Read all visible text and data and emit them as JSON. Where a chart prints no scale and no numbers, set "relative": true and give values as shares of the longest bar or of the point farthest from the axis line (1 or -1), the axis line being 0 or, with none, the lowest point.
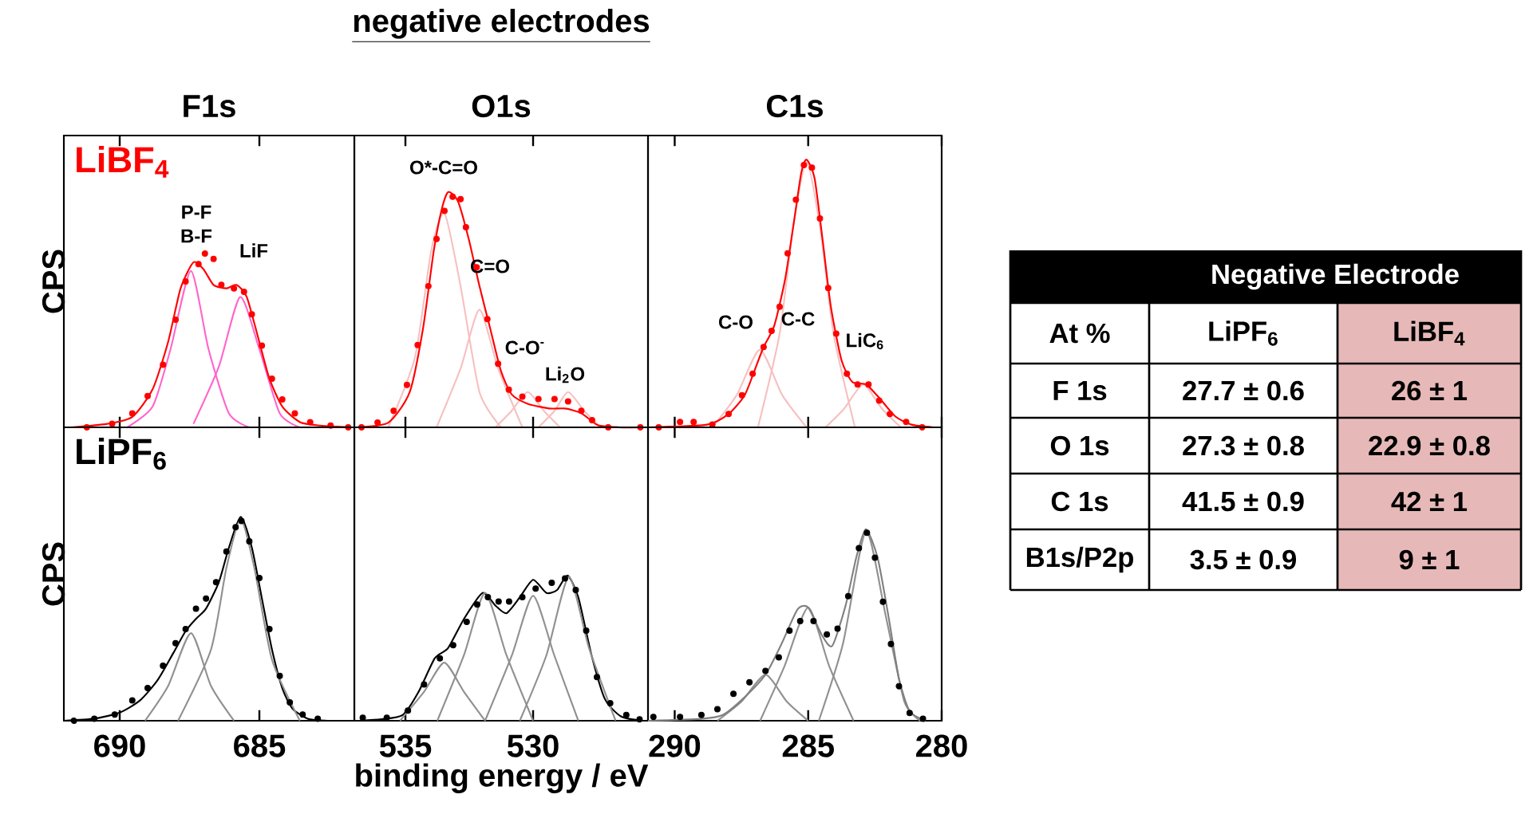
{
  "chart_data": [
    {
      "type": "line",
      "title": "F1s",
      "ylabel": "CPS",
      "relative": true,
      "xlim": [
        692,
        681.6
      ],
      "xticks": [
        690,
        685
      ],
      "tick_labels": false,
      "annotations": [
        "LiBF$_{4}$",
        "P-F",
        "B-F",
        "LiF"
      ],
      "series": [
        {
          "type": "line",
          "color": "#ff66cc",
          "x": [
            689.73,
            688.82,
            688.18,
            687.45,
            686.82,
            686.09,
            685.36
          ],
          "values": [
            0,
            0.12,
            0.45,
            0.9,
            0.45,
            0.08,
            0
          ]
        },
        {
          "type": "line",
          "color": "#ff66cc",
          "x": [
            687.36,
            686.45,
            685.69,
            685.0,
            684.27,
            683.55
          ],
          "values": [
            0.02,
            0.35,
            0.75,
            0.45,
            0.08,
            0
          ]
        },
        {
          "type": "line",
          "color": "#ff0000",
          "x": [
            691.73,
            690.45,
            689.55,
            688.82,
            688.27,
            687.82,
            687.36,
            687.0,
            686.64,
            686.18,
            685.82,
            685.45,
            685.0,
            684.64,
            684.18,
            683.55,
            682.82,
            681.7
          ],
          "values": [
            0,
            0.02,
            0.06,
            0.22,
            0.49,
            0.8,
            0.95,
            0.91,
            0.82,
            0.8,
            0.82,
            0.75,
            0.49,
            0.28,
            0.12,
            0.03,
            0.01,
            0
          ]
        },
        {
          "type": "scatter",
          "marker": "circle",
          "color": "#ff0000",
          "x": [
            691.18,
            690.27,
            689.55,
            689.0,
            688.45,
            688.0,
            687.64,
            687.18,
            686.95,
            686.64,
            686.36,
            685.91,
            685.55,
            685.27,
            684.91,
            684.55,
            684.18,
            683.73,
            683.18,
            682.45,
            681.82
          ],
          "values": [
            0,
            0.02,
            0.08,
            0.18,
            0.36,
            0.62,
            0.84,
            0.94,
            1.0,
            0.97,
            0.82,
            0.8,
            0.78,
            0.65,
            0.47,
            0.28,
            0.16,
            0.08,
            0.03,
            0.01,
            0
          ]
        }
      ]
    },
    {
      "type": "line",
      "title": "negative electrodes",
      "subtitle": "O1s",
      "relative": true,
      "xlim": [
        537,
        525.5
      ],
      "xticks": [
        535,
        530
      ],
      "tick_labels": false,
      "annotations": [
        "O*-C=O",
        "C=O",
        "C-O$^{-}$",
        "Li$_{2}$O"
      ],
      "series": [
        {
          "type": "line",
          "color": "#f7c0c0",
          "x": [
            535.67,
            534.62,
            533.99,
            533.47,
            532.84,
            532.1,
            531.26
          ],
          "values": [
            0,
            0.3,
            0.75,
            0.91,
            0.6,
            0.15,
            0
          ]
        },
        {
          "type": "line",
          "color": "#f7c0c0",
          "x": [
            533.78,
            532.84,
            532.1,
            531.37,
            530.42
          ],
          "values": [
            0,
            0.25,
            0.5,
            0.25,
            0
          ]
        },
        {
          "type": "line",
          "color": "#f7c0c0",
          "x": [
            531.47,
            530.84,
            530.21,
            529.58,
            528.95
          ],
          "values": [
            0,
            0.07,
            0.15,
            0.07,
            0
          ]
        },
        {
          "type": "line",
          "color": "#f7c0c0",
          "x": [
            529.79,
            529.16,
            528.63,
            528.0,
            527.37
          ],
          "values": [
            0,
            0.07,
            0.15,
            0.07,
            0
          ]
        },
        {
          "type": "line",
          "color": "#ff0000",
          "x": [
            536.93,
            535.67,
            534.83,
            534.31,
            533.89,
            533.57,
            533.32,
            532.94,
            532.52,
            532.1,
            531.68,
            531.26,
            530.84,
            530.21,
            529.37,
            528.74,
            528.11,
            527.48,
            526.64,
            525.59
          ],
          "values": [
            0,
            0.02,
            0.15,
            0.42,
            0.75,
            0.93,
            1.0,
            0.96,
            0.8,
            0.6,
            0.42,
            0.24,
            0.14,
            0.1,
            0.08,
            0.08,
            0.06,
            0.01,
            0,
            0
          ]
        },
        {
          "type": "scatter",
          "marker": "circle",
          "color": "#ff0000",
          "x": [
            536.72,
            536.09,
            535.46,
            534.94,
            534.52,
            534.1,
            533.78,
            533.47,
            533.15,
            532.84,
            532.63,
            532.21,
            531.79,
            531.37,
            530.95,
            530.42,
            529.79,
            529.16,
            528.63,
            528.11,
            527.69,
            527.06,
            525.8
          ],
          "values": [
            0,
            0.02,
            0.07,
            0.18,
            0.35,
            0.6,
            0.8,
            0.92,
            0.98,
            0.97,
            0.85,
            0.68,
            0.46,
            0.27,
            0.16,
            0.13,
            0.12,
            0.12,
            0.11,
            0.07,
            0.03,
            0,
            0
          ]
        }
      ]
    },
    {
      "type": "line",
      "title": "C1s",
      "relative": true,
      "xlim": [
        291,
        280
      ],
      "xticks": [
        290,
        285,
        280
      ],
      "tick_labels": false,
      "annotations": [
        "C-O",
        "C-C",
        "LiC$_{6}$"
      ],
      "series": [
        {
          "type": "line",
          "color": "#f7c0c0",
          "x": [
            288.59,
            287.68,
            286.81,
            285.97,
            285.06
          ],
          "values": [
            0,
            0.12,
            0.29,
            0.12,
            0
          ]
        },
        {
          "type": "line",
          "color": "#f7c0c0",
          "x": [
            286.88,
            286.07,
            285.56,
            285.06,
            284.56,
            284.05,
            283.25
          ],
          "values": [
            0,
            0.35,
            0.75,
            0.99,
            0.75,
            0.35,
            0
          ]
        },
        {
          "type": "line",
          "color": "#f7c0c0",
          "x": [
            284.35,
            283.65,
            282.94,
            282.24,
            281.53
          ],
          "values": [
            0,
            0.07,
            0.16,
            0.07,
            0
          ]
        },
        {
          "type": "line",
          "color": "#ff0000",
          "x": [
            291.0,
            288.79,
            287.98,
            287.38,
            286.98,
            286.67,
            286.27,
            285.87,
            285.56,
            285.26,
            285.06,
            284.76,
            284.46,
            284.15,
            283.75,
            283.35,
            282.83,
            282.34,
            281.73,
            281.13,
            280.32
          ],
          "values": [
            0,
            0.01,
            0.05,
            0.12,
            0.22,
            0.3,
            0.38,
            0.55,
            0.75,
            0.95,
            1.0,
            0.93,
            0.7,
            0.45,
            0.25,
            0.17,
            0.16,
            0.11,
            0.04,
            0.01,
            0
          ]
        },
        {
          "type": "scatter",
          "marker": "circle",
          "color": "#ff0000",
          "x": [
            290.6,
            289.8,
            289.29,
            288.59,
            287.98,
            287.48,
            287.08,
            286.67,
            286.37,
            286.07,
            285.77,
            285.46,
            285.16,
            284.86,
            284.56,
            284.25,
            283.95,
            283.55,
            283.15,
            282.74,
            282.34,
            281.94,
            281.33,
            280.73
          ],
          "values": [
            0,
            0.02,
            0.02,
            0.01,
            0.05,
            0.12,
            0.2,
            0.3,
            0.36,
            0.45,
            0.65,
            0.85,
            0.98,
            0.97,
            0.78,
            0.52,
            0.35,
            0.2,
            0.16,
            0.16,
            0.1,
            0.05,
            0.02,
            0
          ]
        }
      ]
    },
    {
      "type": "line",
      "ylabel": "CPS",
      "relative": true,
      "xlim": [
        692,
        681.6
      ],
      "xticks": [
        690,
        685
      ],
      "tick_labels": "x",
      "annotations": [
        "LiPF$_{6}$"
      ],
      "series": [
        {
          "type": "line",
          "color": "#000000",
          "x": [
            692.0,
            690.91,
            690.0,
            689.27,
            688.64,
            688.09,
            687.64,
            687.27,
            686.91,
            686.45,
            686.09,
            685.67,
            685.27,
            684.91,
            684.55,
            684.18,
            683.82,
            683.27,
            682.55
          ],
          "values": [
            0,
            0.01,
            0.04,
            0.1,
            0.2,
            0.33,
            0.44,
            0.5,
            0.55,
            0.68,
            0.85,
            1.0,
            0.85,
            0.6,
            0.35,
            0.16,
            0.06,
            0.01,
            0
          ]
        },
        {
          "type": "line",
          "color": "#909090",
          "x": [
            689.09,
            688.27,
            687.45,
            686.73,
            685.91
          ],
          "values": [
            0,
            0.17,
            0.43,
            0.17,
            0
          ]
        },
        {
          "type": "line",
          "color": "#909090",
          "x": [
            687.91,
            686.73,
            686.18,
            685.67,
            685.18,
            684.55,
            683.55
          ],
          "values": [
            0,
            0.35,
            0.75,
            0.99,
            0.75,
            0.3,
            0
          ]
        },
        {
          "type": "scatter",
          "marker": "circle",
          "color": "#000000",
          "x": [
            691.64,
            690.91,
            690.18,
            689.55,
            689.0,
            688.45,
            688.0,
            687.64,
            687.27,
            686.91,
            686.55,
            686.18,
            685.85,
            685.64,
            685.36,
            685.0,
            684.64,
            684.27,
            683.91,
            683.45,
            682.91
          ],
          "values": [
            0,
            0.01,
            0.03,
            0.1,
            0.16,
            0.27,
            0.38,
            0.45,
            0.55,
            0.6,
            0.68,
            0.83,
            0.95,
            0.98,
            0.88,
            0.7,
            0.45,
            0.22,
            0.09,
            0.03,
            0.01
          ]
        }
      ]
    },
    {
      "type": "line",
      "xlabel": "binding energy / eV",
      "relative": true,
      "xlim": [
        537,
        525.5
      ],
      "xticks": [
        535,
        530
      ],
      "tick_labels": "x",
      "series": [
        {
          "type": "line",
          "color": "#000000",
          "x": [
            536.77,
            535.94,
            535.1,
            534.48,
            533.85,
            533.33,
            532.71,
            531.98,
            531.46,
            531.04,
            530.52,
            530.0,
            529.48,
            529.06,
            528.65,
            528.23,
            527.71,
            527.19,
            526.56,
            525.73
          ],
          "values": [
            0,
            0.01,
            0.04,
            0.2,
            0.43,
            0.5,
            0.7,
            0.88,
            0.79,
            0.74,
            0.85,
            0.97,
            0.88,
            0.9,
            1.0,
            0.85,
            0.45,
            0.15,
            0.03,
            0
          ]
        },
        {
          "type": "line",
          "color": "#909090",
          "x": [
            535.21,
            534.27,
            533.48,
            532.71,
            531.88
          ],
          "values": [
            0,
            0.2,
            0.4,
            0.2,
            0
          ]
        },
        {
          "type": "line",
          "color": "#909090",
          "x": [
            533.75,
            532.71,
            531.88,
            531.04,
            530.0
          ],
          "values": [
            0,
            0.45,
            0.88,
            0.45,
            0
          ]
        },
        {
          "type": "line",
          "color": "#909090",
          "x": [
            531.88,
            530.83,
            530.0,
            529.17,
            528.23
          ],
          "values": [
            0,
            0.45,
            0.86,
            0.45,
            0
          ]
        },
        {
          "type": "line",
          "color": "#909090",
          "x": [
            530.52,
            529.48,
            528.6,
            527.81,
            526.77
          ],
          "values": [
            0,
            0.45,
            0.99,
            0.5,
            0
          ]
        },
        {
          "type": "scatter",
          "marker": "circle",
          "color": "#000000",
          "x": [
            536.67,
            535.73,
            534.9,
            534.27,
            533.65,
            533.13,
            532.6,
            532.19,
            531.77,
            531.35,
            530.94,
            530.42,
            529.9,
            529.27,
            528.75,
            528.33,
            527.92,
            527.5,
            526.98,
            526.35,
            525.83
          ],
          "values": [
            0.02,
            0.02,
            0.07,
            0.25,
            0.43,
            0.52,
            0.68,
            0.8,
            0.85,
            0.82,
            0.82,
            0.85,
            0.91,
            0.95,
            0.98,
            0.9,
            0.62,
            0.3,
            0.12,
            0.04,
            0.01
          ]
        }
      ]
    },
    {
      "type": "line",
      "relative": true,
      "xlim": [
        291,
        280
      ],
      "xticks": [
        290,
        285,
        280
      ],
      "tick_labels": "x",
      "series": [
        {
          "type": "line",
          "color": "#909090",
          "x": [
            288.4,
            287.5,
            286.6,
            285.8,
            285.0
          ],
          "values": [
            0,
            0.1,
            0.24,
            0.1,
            0
          ]
        },
        {
          "type": "line",
          "color": "#909090",
          "x": [
            286.8,
            285.9,
            285.0,
            284.2,
            283.3
          ],
          "values": [
            0,
            0.28,
            0.59,
            0.28,
            0
          ]
        },
        {
          "type": "line",
          "color": "#909090",
          "x": [
            284.6,
            283.7,
            282.84,
            282.1,
            281.4,
            280.8
          ],
          "values": [
            0,
            0.4,
            0.99,
            0.55,
            0.1,
            0
          ]
        },
        {
          "type": "line",
          "color": "#808080",
          "x": [
            291.0,
            289.0,
            288.2,
            287.4,
            286.6,
            286.0,
            285.4,
            285.0,
            284.5,
            284.1,
            283.6,
            283.2,
            282.84,
            282.4,
            282.0,
            281.6,
            281.2,
            280.6
          ],
          "values": [
            0,
            0.01,
            0.03,
            0.12,
            0.24,
            0.4,
            0.58,
            0.59,
            0.45,
            0.39,
            0.6,
            0.85,
            1.0,
            0.85,
            0.55,
            0.22,
            0.05,
            0
          ]
        },
        {
          "type": "scatter",
          "marker": "circle",
          "color": "#000000",
          "x": [
            290.8,
            289.8,
            289.0,
            288.4,
            287.8,
            287.2,
            286.6,
            286.1,
            285.7,
            285.3,
            284.8,
            284.3,
            283.9,
            283.5,
            283.1,
            282.8,
            282.5,
            282.2,
            281.9,
            281.6,
            281.2,
            280.7
          ],
          "values": [
            0.02,
            0.02,
            0.03,
            0.06,
            0.14,
            0.2,
            0.26,
            0.33,
            0.47,
            0.52,
            0.52,
            0.45,
            0.48,
            0.65,
            0.9,
            0.98,
            0.85,
            0.62,
            0.4,
            0.18,
            0.04,
            0.01
          ]
        }
      ]
    },
    {
      "type": "other",
      "title": "Negative Electrode",
      "ylabel": "At %",
      "categories": [
        "LiPF$_{6}$",
        "LiBF$_{4}$"
      ],
      "y_categories": [
        "F 1s",
        "O 1s",
        "C 1s",
        "B1s/P2p"
      ],
      "colors": [
        "#ffffff",
        "#e6b9b8"
      ],
      "cell_labels": [
        [
          "27.7 ± 0.6",
          "26 ± 1"
        ],
        [
          "27.3 ± 0.8",
          "22.9 ± 0.8"
        ],
        [
          "41.5 ± 0.9",
          "42 ± 1"
        ],
        [
          "3.5 ± 0.9",
          "9 ± 1"
        ]
      ]
    }
  ]
}
